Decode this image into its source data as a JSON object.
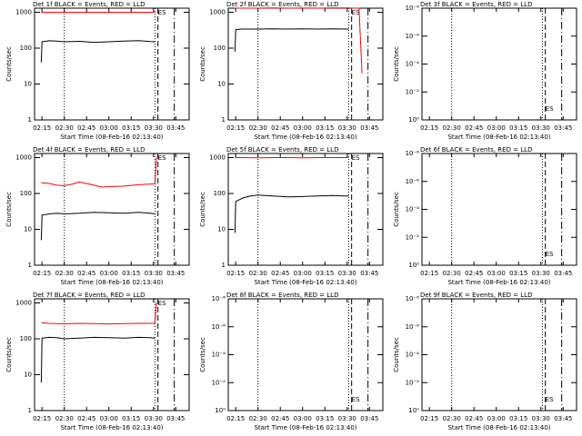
{
  "chart_data": [
    {
      "type": "line",
      "title": "Det 1f BLACK = Events, RED = LLD",
      "xlabel": "Start Time (08-Feb-16 02:13:40)",
      "ylabel": "Counts/sec",
      "log_y": true,
      "xlim": [
        10,
        114
      ],
      "ylim": [
        1,
        1300
      ],
      "xticks": [
        {
          "value": 15,
          "label": "02:15"
        },
        {
          "value": 30,
          "label": "02:30"
        },
        {
          "value": 45,
          "label": "02:45"
        },
        {
          "value": 60,
          "label": "03:00"
        },
        {
          "value": 75,
          "label": "03:15"
        },
        {
          "value": 90,
          "label": "03:30"
        },
        {
          "value": 105,
          "label": "03:45"
        }
      ],
      "yticks": [
        1,
        10,
        100,
        1000
      ],
      "vlines": [
        {
          "value": 30,
          "style": "dotted"
        },
        {
          "value": 91,
          "style": "dotted"
        },
        {
          "value": 93,
          "style": "dashed"
        },
        {
          "value": 104,
          "style": "dashdot"
        }
      ],
      "annotations": [
        {
          "text": "ES",
          "x": 93
        }
      ],
      "series": [
        {
          "color": "#000000",
          "x": [
            14.5,
            15,
            20,
            25,
            30,
            40,
            50,
            60,
            70,
            80,
            88,
            91
          ],
          "values": [
            40,
            150,
            160,
            158,
            150,
            155,
            145,
            150,
            158,
            162,
            152,
            150
          ]
        },
        {
          "color": "#ff0000",
          "x": [
            14.5,
            20,
            30,
            40,
            50,
            60,
            70,
            80,
            91
          ],
          "values": [
            1000,
            1000,
            1000,
            1000,
            1000,
            1000,
            1000,
            1000,
            1000
          ]
        }
      ]
    },
    {
      "type": "line",
      "title": "Det 2f BLACK = Events, RED = LLD",
      "xlabel": "Start Time (08-Feb-16 02:13:40)",
      "ylabel": "Counts/sec",
      "log_y": true,
      "xlim": [
        10,
        114
      ],
      "ylim": [
        1,
        1300
      ],
      "xticks": [
        {
          "value": 15,
          "label": "02:15"
        },
        {
          "value": 30,
          "label": "02:30"
        },
        {
          "value": 45,
          "label": "02:45"
        },
        {
          "value": 60,
          "label": "03:00"
        },
        {
          "value": 75,
          "label": "03:15"
        },
        {
          "value": 90,
          "label": "03:30"
        },
        {
          "value": 105,
          "label": "03:45"
        }
      ],
      "yticks": [
        1,
        10,
        100,
        1000
      ],
      "vlines": [
        {
          "value": 30,
          "style": "dotted"
        },
        {
          "value": 91,
          "style": "dotted"
        },
        {
          "value": 93,
          "style": "dashed"
        },
        {
          "value": 104,
          "style": "dashdot"
        }
      ],
      "annotations": [
        {
          "text": "ES",
          "x": 93
        }
      ],
      "series": [
        {
          "color": "#000000",
          "x": [
            14.5,
            15,
            20,
            30,
            40,
            50,
            60,
            70,
            80,
            91
          ],
          "values": [
            80,
            330,
            340,
            340,
            345,
            340,
            345,
            340,
            345,
            340
          ]
        },
        {
          "color": "#ff0000",
          "x": [
            14.5,
            20,
            30,
            40,
            50,
            60,
            70,
            80,
            91,
            93,
            95,
            98,
            100
          ],
          "values": [
            1300,
            1300,
            1300,
            1320,
            1300,
            1310,
            1300,
            1320,
            1320,
            1300,
            1300,
            1300,
            20
          ]
        }
      ]
    },
    {
      "type": "line",
      "title": "Det 3f BLACK = Events, RED = LLD",
      "xlabel": "Start Time (08-Feb-16 02:13:40)",
      "ylabel": "Counts/sec",
      "log_y": true,
      "xlim": [
        10,
        114
      ],
      "ylim": [
        1,
        1e-08
      ],
      "xticks": [
        {
          "value": 15,
          "label": "02:15"
        },
        {
          "value": 30,
          "label": "02:30"
        },
        {
          "value": 45,
          "label": "02:45"
        },
        {
          "value": 60,
          "label": "03:00"
        },
        {
          "value": 75,
          "label": "03:15"
        },
        {
          "value": 90,
          "label": "03:30"
        },
        {
          "value": 105,
          "label": "03:45"
        }
      ],
      "yticks": [
        {
          "value": 1,
          "label": "10⁰"
        },
        {
          "value": 0.01,
          "label": "10⁻²"
        },
        {
          "value": 0.0001,
          "label": "10⁻⁴"
        },
        {
          "value": 1e-06,
          "label": "10⁻⁶"
        },
        {
          "value": 1e-08,
          "label": "10⁻⁸"
        }
      ],
      "vlines": [
        {
          "value": 30,
          "style": "dotted"
        },
        {
          "value": 91,
          "style": "dotted"
        },
        {
          "value": 93,
          "style": "dashed"
        },
        {
          "value": 104,
          "style": "dashdot"
        }
      ],
      "annotations": [
        {
          "text": "ES",
          "x": 93
        }
      ],
      "series": []
    },
    {
      "type": "line",
      "title": "Det 4f BLACK = Events, RED = LLD",
      "xlabel": "Start Time (08-Feb-16 02:13:40)",
      "ylabel": "Counts/sec",
      "log_y": true,
      "xlim": [
        10,
        114
      ],
      "ylim": [
        1,
        1300
      ],
      "xticks": [
        {
          "value": 15,
          "label": "02:15"
        },
        {
          "value": 30,
          "label": "02:30"
        },
        {
          "value": 45,
          "label": "02:45"
        },
        {
          "value": 60,
          "label": "03:00"
        },
        {
          "value": 75,
          "label": "03:15"
        },
        {
          "value": 90,
          "label": "03:30"
        },
        {
          "value": 105,
          "label": "03:45"
        }
      ],
      "yticks": [
        1,
        10,
        100,
        1000
      ],
      "vlines": [
        {
          "value": 30,
          "style": "dotted"
        },
        {
          "value": 91,
          "style": "dotted"
        },
        {
          "value": 93,
          "style": "dashed"
        },
        {
          "value": 104,
          "style": "dashdot"
        }
      ],
      "annotations": [
        {
          "text": "ES",
          "x": 93
        }
      ],
      "series": [
        {
          "color": "#000000",
          "x": [
            14.5,
            15,
            20,
            25,
            30,
            40,
            50,
            60,
            70,
            80,
            88,
            91
          ],
          "values": [
            5,
            25,
            27,
            28,
            27,
            28,
            30,
            29,
            28,
            30,
            28,
            27
          ]
        },
        {
          "color": "#ff0000",
          "x": [
            14.5,
            20,
            25,
            30,
            35,
            40,
            50,
            55,
            60,
            70,
            80,
            85,
            91,
            92
          ],
          "values": [
            200,
            190,
            170,
            165,
            180,
            210,
            170,
            150,
            155,
            160,
            175,
            180,
            185,
            1000
          ]
        }
      ]
    },
    {
      "type": "line",
      "title": "Det 5f BLACK = Events, RED = LLD",
      "xlabel": "Start Time (08-Feb-16 02:13:40)",
      "ylabel": "Counts/sec",
      "log_y": true,
      "xlim": [
        10,
        114
      ],
      "ylim": [
        1,
        1300
      ],
      "xticks": [
        {
          "value": 15,
          "label": "02:15"
        },
        {
          "value": 30,
          "label": "02:30"
        },
        {
          "value": 45,
          "label": "02:45"
        },
        {
          "value": 60,
          "label": "03:00"
        },
        {
          "value": 75,
          "label": "03:15"
        },
        {
          "value": 90,
          "label": "03:30"
        },
        {
          "value": 105,
          "label": "03:45"
        }
      ],
      "yticks": [
        1,
        10,
        100,
        1000
      ],
      "vlines": [
        {
          "value": 30,
          "style": "dotted"
        },
        {
          "value": 91,
          "style": "dotted"
        },
        {
          "value": 93,
          "style": "dashed"
        },
        {
          "value": 104,
          "style": "dashdot"
        }
      ],
      "annotations": [
        {
          "text": "ES",
          "x": 93
        }
      ],
      "series": [
        {
          "color": "#000000",
          "x": [
            14.5,
            15,
            20,
            25,
            30,
            40,
            50,
            60,
            70,
            80,
            88,
            91
          ],
          "values": [
            8,
            60,
            75,
            85,
            90,
            85,
            80,
            82,
            85,
            88,
            85,
            85
          ]
        },
        {
          "color": "#ff0000",
          "x": [
            14.5,
            20,
            30,
            40,
            50,
            60,
            70,
            80,
            91
          ],
          "values": [
            1000,
            1000,
            980,
            1000,
            1000,
            990,
            1000,
            1000,
            1000
          ]
        }
      ]
    },
    {
      "type": "line",
      "title": "Det 6f BLACK = Events, RED = LLD",
      "xlabel": "Start Time (08-Feb-16 02:13:40)",
      "ylabel": "Counts/sec",
      "log_y": true,
      "xlim": [
        10,
        114
      ],
      "ylim": [
        1,
        1e-08
      ],
      "xticks": [
        {
          "value": 15,
          "label": "02:15"
        },
        {
          "value": 30,
          "label": "02:30"
        },
        {
          "value": 45,
          "label": "02:45"
        },
        {
          "value": 60,
          "label": "03:00"
        },
        {
          "value": 75,
          "label": "03:15"
        },
        {
          "value": 90,
          "label": "03:30"
        },
        {
          "value": 105,
          "label": "03:45"
        }
      ],
      "yticks": [
        {
          "value": 1,
          "label": "10⁰"
        },
        {
          "value": 0.01,
          "label": "10⁻²"
        },
        {
          "value": 0.0001,
          "label": "10⁻⁴"
        },
        {
          "value": 1e-06,
          "label": "10⁻⁶"
        },
        {
          "value": 1e-08,
          "label": "10⁻⁸"
        }
      ],
      "vlines": [
        {
          "value": 30,
          "style": "dotted"
        },
        {
          "value": 91,
          "style": "dotted"
        },
        {
          "value": 93,
          "style": "dashed"
        },
        {
          "value": 104,
          "style": "dashdot"
        }
      ],
      "annotations": [
        {
          "text": "ES",
          "x": 93
        }
      ],
      "series": []
    },
    {
      "type": "line",
      "title": "Det 7f BLACK = Events, RED = LLD",
      "xlabel": "Start Time (08-Feb-16 02:13:40)",
      "ylabel": "Counts/sec",
      "log_y": true,
      "xlim": [
        10,
        114
      ],
      "ylim": [
        1,
        1300
      ],
      "xticks": [
        {
          "value": 15,
          "label": "02:15"
        },
        {
          "value": 30,
          "label": "02:30"
        },
        {
          "value": 45,
          "label": "02:45"
        },
        {
          "value": 60,
          "label": "03:00"
        },
        {
          "value": 75,
          "label": "03:15"
        },
        {
          "value": 90,
          "label": "03:30"
        },
        {
          "value": 105,
          "label": "03:45"
        }
      ],
      "yticks": [
        1,
        10,
        100,
        1000
      ],
      "vlines": [
        {
          "value": 30,
          "style": "dotted"
        },
        {
          "value": 91,
          "style": "dotted"
        },
        {
          "value": 93,
          "style": "dashed"
        },
        {
          "value": 104,
          "style": "dashdot"
        }
      ],
      "annotations": [
        {
          "text": "ES",
          "x": 93
        }
      ],
      "series": [
        {
          "color": "#000000",
          "x": [
            14.5,
            15,
            20,
            25,
            30,
            40,
            50,
            60,
            70,
            80,
            88,
            91
          ],
          "values": [
            6,
            105,
            110,
            108,
            100,
            105,
            110,
            108,
            105,
            110,
            108,
            105
          ]
        },
        {
          "color": "#ff0000",
          "x": [
            14.5,
            20,
            30,
            40,
            50,
            60,
            70,
            80,
            91,
            92
          ],
          "values": [
            280,
            270,
            260,
            270,
            265,
            260,
            265,
            270,
            270,
            1000
          ]
        }
      ]
    },
    {
      "type": "line",
      "title": "Det 8f BLACK = Events, RED = LLD",
      "xlabel": "Start Time (08-Feb-16 02:13:40)",
      "ylabel": "Counts/sec",
      "log_y": true,
      "xlim": [
        10,
        114
      ],
      "ylim": [
        1,
        1e-08
      ],
      "xticks": [
        {
          "value": 15,
          "label": "02:15"
        },
        {
          "value": 30,
          "label": "02:30"
        },
        {
          "value": 45,
          "label": "02:45"
        },
        {
          "value": 60,
          "label": "03:00"
        },
        {
          "value": 75,
          "label": "03:15"
        },
        {
          "value": 90,
          "label": "03:30"
        },
        {
          "value": 105,
          "label": "03:45"
        }
      ],
      "yticks": [
        {
          "value": 1,
          "label": "10⁰"
        },
        {
          "value": 0.01,
          "label": "10⁻²"
        },
        {
          "value": 0.0001,
          "label": "10⁻⁴"
        },
        {
          "value": 1e-06,
          "label": "10⁻⁶"
        },
        {
          "value": 1e-08,
          "label": "10⁻⁸"
        }
      ],
      "vlines": [
        {
          "value": 30,
          "style": "dotted"
        },
        {
          "value": 91,
          "style": "dotted"
        },
        {
          "value": 93,
          "style": "dashed"
        },
        {
          "value": 104,
          "style": "dashdot"
        }
      ],
      "annotations": [
        {
          "text": "ES",
          "x": 93
        }
      ],
      "series": []
    },
    {
      "type": "line",
      "title": "Det 9f BLACK = Events, RED = LLD",
      "xlabel": "Start Time (08-Feb-16 02:13:40)",
      "ylabel": "Counts/sec",
      "log_y": true,
      "xlim": [
        10,
        114
      ],
      "ylim": [
        1,
        1e-08
      ],
      "xticks": [
        {
          "value": 15,
          "label": "02:15"
        },
        {
          "value": 30,
          "label": "02:30"
        },
        {
          "value": 45,
          "label": "02:45"
        },
        {
          "value": 60,
          "label": "03:00"
        },
        {
          "value": 75,
          "label": "03:15"
        },
        {
          "value": 90,
          "label": "03:30"
        },
        {
          "value": 105,
          "label": "03:45"
        }
      ],
      "yticks": [
        {
          "value": 1,
          "label": "10⁰"
        },
        {
          "value": 0.01,
          "label": "10⁻²"
        },
        {
          "value": 0.0001,
          "label": "10⁻⁴"
        },
        {
          "value": 1e-06,
          "label": "10⁻⁶"
        },
        {
          "value": 1e-08,
          "label": "10⁻⁸"
        }
      ],
      "vlines": [
        {
          "value": 30,
          "style": "dotted"
        },
        {
          "value": 91,
          "style": "dotted"
        },
        {
          "value": 93,
          "style": "dashed"
        },
        {
          "value": 104,
          "style": "dashdot"
        }
      ],
      "annotations": [
        {
          "text": "ES",
          "x": 93
        }
      ],
      "series": []
    }
  ]
}
